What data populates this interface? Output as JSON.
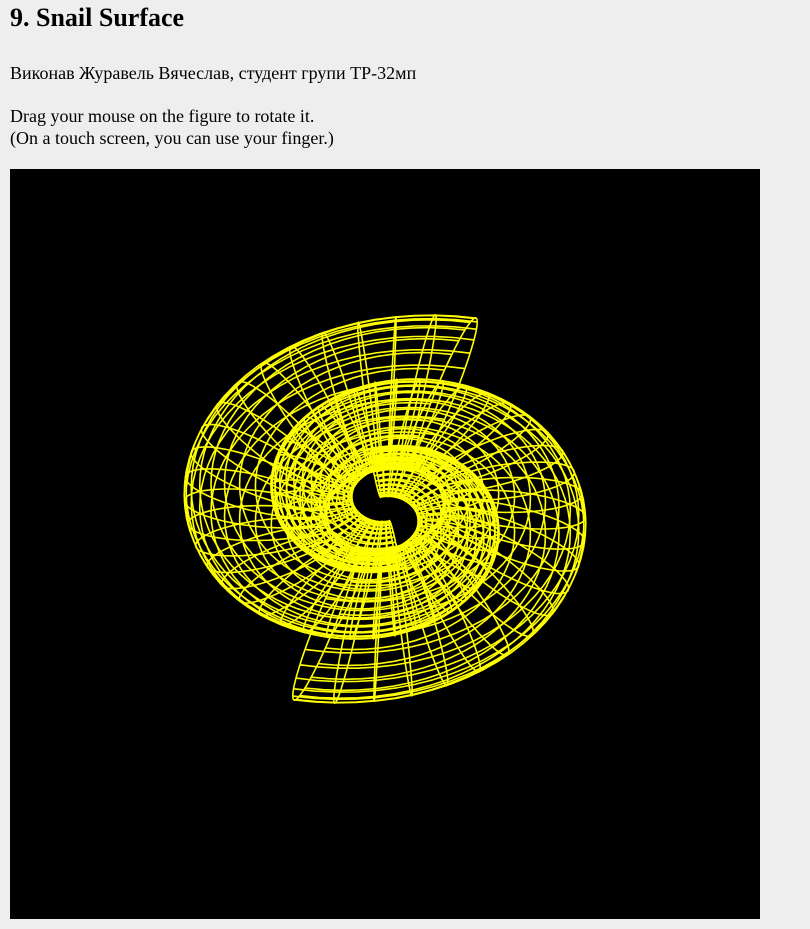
{
  "page": {
    "title": "9. Snail Surface",
    "author_line": "Виконав Журавель Вячеслав, студент групи ТР-32мп",
    "hint_line_1": "Drag your mouse on the figure to rotate it.",
    "hint_line_2": "(On a touch screen, you can use your finger.)"
  },
  "viewer": {
    "background_color": "#000000",
    "wire_color": "#ffff00",
    "figure_name": "snail-surface-wireframe"
  }
}
